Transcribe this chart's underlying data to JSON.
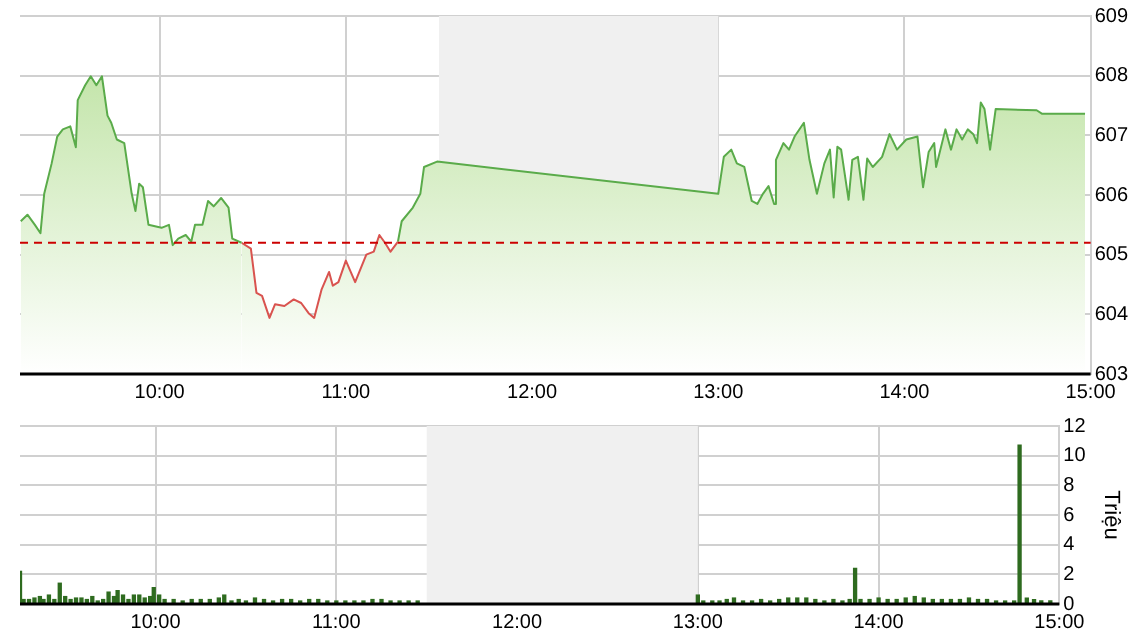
{
  "chart_data": [
    {
      "type": "area",
      "x": [
        9.254,
        9.29,
        9.33,
        9.36,
        9.38,
        9.42,
        9.45,
        9.48,
        9.52,
        9.55,
        9.56,
        9.6,
        9.63,
        9.66,
        9.69,
        9.72,
        9.74,
        9.77,
        9.81,
        9.85,
        9.87,
        9.89,
        9.91,
        9.94,
        10.01,
        10.05,
        10.07,
        10.1,
        10.14,
        10.17,
        10.19,
        10.23,
        10.26,
        10.29,
        10.33,
        10.37,
        10.39,
        10.44,
        10.49,
        10.52,
        10.55,
        10.59,
        10.62,
        10.67,
        10.72,
        10.76,
        10.8,
        10.83,
        10.87,
        10.91,
        10.93,
        10.96,
        11.0,
        11.05,
        11.11,
        11.15,
        11.18,
        11.21,
        11.24,
        11.28,
        11.3,
        11.36,
        11.4,
        11.42,
        11.49,
        13.0,
        13.03,
        13.07,
        13.1,
        13.14,
        13.18,
        13.21,
        13.24,
        13.27,
        13.3,
        13.31,
        13.35,
        13.38,
        13.41,
        13.46,
        13.49,
        13.53,
        13.57,
        13.6,
        13.62,
        13.64,
        13.66,
        13.7,
        13.72,
        13.75,
        13.78,
        13.8,
        13.83,
        13.88,
        13.92,
        13.96,
        14.01,
        14.07,
        14.1,
        14.13,
        14.16,
        14.17,
        14.22,
        14.25,
        14.28,
        14.31,
        14.34,
        14.37,
        14.39,
        14.41,
        14.43,
        14.46,
        14.49,
        14.71,
        14.74,
        14.97
      ],
      "series": [
        {
          "color": "#5aab4a",
          "values": [
            605.56,
            605.67,
            605.5,
            605.36,
            606.02,
            606.53,
            606.98,
            607.1,
            607.15,
            606.8,
            607.59,
            607.84,
            607.99,
            607.84,
            607.99,
            607.33,
            607.21,
            606.93,
            606.87,
            606.02,
            605.73,
            606.19,
            606.13,
            605.5,
            605.45,
            605.5,
            605.16,
            605.27,
            605.33,
            605.22,
            605.5,
            605.5,
            605.9,
            605.81,
            605.95,
            605.79,
            605.27,
            605.2,
            null,
            null,
            null,
            null,
            null,
            null,
            null,
            null,
            null,
            null,
            null,
            null,
            null,
            null,
            null,
            null,
            null,
            null,
            null,
            null,
            null,
            605.22,
            605.56,
            605.79,
            606.02,
            606.47,
            606.56,
            606.02,
            606.64,
            606.76,
            606.53,
            606.47,
            605.9,
            605.85,
            606.02,
            606.15,
            605.85,
            606.59,
            606.87,
            606.76,
            606.98,
            607.21,
            606.59,
            606.02,
            606.53,
            606.76,
            605.96,
            606.81,
            606.76,
            605.92,
            606.59,
            606.64,
            605.92,
            606.61,
            606.47,
            606.64,
            607.02,
            606.76,
            606.93,
            606.98,
            606.13,
            606.72,
            606.87,
            606.47,
            607.1,
            606.76,
            607.1,
            606.93,
            607.1,
            607.02,
            606.87,
            607.55,
            607.44,
            606.76,
            607.44,
            607.42,
            607.36,
            607.36
          ]
        },
        {
          "color": "#d9534f",
          "values": [
            null,
            null,
            null,
            null,
            null,
            null,
            null,
            null,
            null,
            null,
            null,
            null,
            null,
            null,
            null,
            null,
            null,
            null,
            null,
            null,
            null,
            null,
            null,
            null,
            null,
            null,
            null,
            null,
            null,
            null,
            null,
            null,
            null,
            null,
            null,
            null,
            null,
            605.2,
            605.1,
            604.36,
            604.31,
            603.94,
            604.17,
            604.14,
            604.25,
            604.19,
            604.02,
            603.94,
            604.42,
            604.71,
            604.48,
            604.54,
            604.9,
            604.54,
            605.0,
            605.05,
            605.33,
            605.2,
            605.05,
            605.22,
            null,
            null,
            null,
            null,
            null,
            null,
            null,
            null,
            null,
            null,
            null,
            null,
            null,
            null,
            null,
            null,
            null,
            null,
            null,
            null,
            null,
            null,
            null,
            null,
            null,
            null,
            null,
            null,
            null,
            null,
            null,
            null,
            null,
            null,
            null,
            null,
            null,
            null,
            null,
            null,
            null,
            null,
            null,
            null,
            null,
            null,
            null,
            null,
            null,
            null,
            null,
            null,
            null,
            null,
            null,
            null
          ]
        }
      ],
      "xlim": [
        9.25,
        15
      ],
      "xticks": [
        {
          "value": 10,
          "label": "10:00"
        },
        {
          "value": 11,
          "label": "11:00"
        },
        {
          "value": 12,
          "label": "12:00"
        },
        {
          "value": 13,
          "label": "13:00"
        },
        {
          "value": 14,
          "label": "14:00"
        },
        {
          "value": 15,
          "label": "15:00"
        }
      ],
      "ylim": [
        603,
        609
      ],
      "yticks": [
        603,
        604,
        605,
        606,
        607,
        608,
        609
      ],
      "ref_lines": [
        {
          "axis": "y",
          "value": 605.2,
          "color": "#cc0000",
          "line_style": "dashed"
        }
      ],
      "bands": [
        {
          "axis": "x",
          "from": 11.5,
          "to": 13,
          "color": "#f0f0f0"
        }
      ],
      "grid": true,
      "legend": false,
      "marker": "none"
    },
    {
      "type": "bar",
      "x": [
        9.25,
        9.27,
        9.3,
        9.33,
        9.36,
        9.38,
        9.41,
        9.44,
        9.47,
        9.5,
        9.53,
        9.56,
        9.59,
        9.62,
        9.65,
        9.68,
        9.71,
        9.74,
        9.77,
        9.79,
        9.82,
        9.85,
        9.88,
        9.91,
        9.94,
        9.97,
        9.99,
        10.02,
        10.05,
        10.1,
        10.15,
        10.2,
        10.25,
        10.3,
        10.35,
        10.38,
        10.42,
        10.46,
        10.5,
        10.55,
        10.6,
        10.65,
        10.7,
        10.75,
        10.8,
        10.85,
        10.9,
        10.95,
        11.0,
        11.05,
        11.1,
        11.15,
        11.2,
        11.25,
        11.3,
        11.35,
        11.4,
        11.45,
        13.0,
        13.03,
        13.08,
        13.12,
        13.16,
        13.2,
        13.25,
        13.3,
        13.35,
        13.4,
        13.45,
        13.5,
        13.55,
        13.6,
        13.65,
        13.7,
        13.75,
        13.8,
        13.84,
        13.87,
        13.9,
        13.95,
        14.0,
        14.05,
        14.1,
        14.15,
        14.2,
        14.25,
        14.3,
        14.35,
        14.4,
        14.45,
        14.5,
        14.55,
        14.6,
        14.65,
        14.7,
        14.75,
        14.78,
        14.82,
        14.86,
        14.9,
        14.95
      ],
      "values": [
        2.2,
        0.3,
        0.3,
        0.4,
        0.5,
        0.3,
        0.6,
        0.3,
        1.4,
        0.5,
        0.3,
        0.4,
        0.4,
        0.3,
        0.5,
        0.2,
        0.3,
        0.8,
        0.5,
        0.9,
        0.6,
        0.3,
        0.6,
        0.6,
        0.4,
        0.5,
        1.1,
        0.6,
        0.3,
        0.3,
        0.2,
        0.3,
        0.3,
        0.3,
        0.4,
        0.6,
        0.2,
        0.3,
        0.2,
        0.4,
        0.3,
        0.2,
        0.3,
        0.3,
        0.2,
        0.3,
        0.3,
        0.2,
        0.2,
        0.2,
        0.2,
        0.2,
        0.3,
        0.3,
        0.2,
        0.2,
        0.2,
        0.2,
        0.6,
        0.2,
        0.2,
        0.2,
        0.3,
        0.4,
        0.2,
        0.2,
        0.3,
        0.2,
        0.3,
        0.4,
        0.4,
        0.4,
        0.3,
        0.2,
        0.3,
        0.2,
        0.3,
        2.4,
        0.3,
        0.3,
        0.4,
        0.3,
        0.3,
        0.4,
        0.5,
        0.4,
        0.3,
        0.3,
        0.3,
        0.3,
        0.4,
        0.3,
        0.3,
        0.2,
        0.2,
        0.2,
        10.7,
        0.4,
        0.3,
        0.2,
        0.2
      ],
      "color": "#2e6b1f",
      "ylabel": "Triệu",
      "xlim": [
        9.25,
        15
      ],
      "xticks": [
        {
          "value": 10,
          "label": "10:00"
        },
        {
          "value": 11,
          "label": "11:00"
        },
        {
          "value": 12,
          "label": "12:00"
        },
        {
          "value": 13,
          "label": "13:00"
        },
        {
          "value": 14,
          "label": "14:00"
        },
        {
          "value": 15,
          "label": "15:00"
        }
      ],
      "ylim": [
        0,
        12
      ],
      "yticks": [
        0,
        2,
        4,
        6,
        8,
        10,
        12
      ],
      "bands": [
        {
          "axis": "x",
          "from": 11.5,
          "to": 13,
          "color": "#f0f0f0"
        }
      ],
      "grid": true,
      "legend": false
    }
  ]
}
